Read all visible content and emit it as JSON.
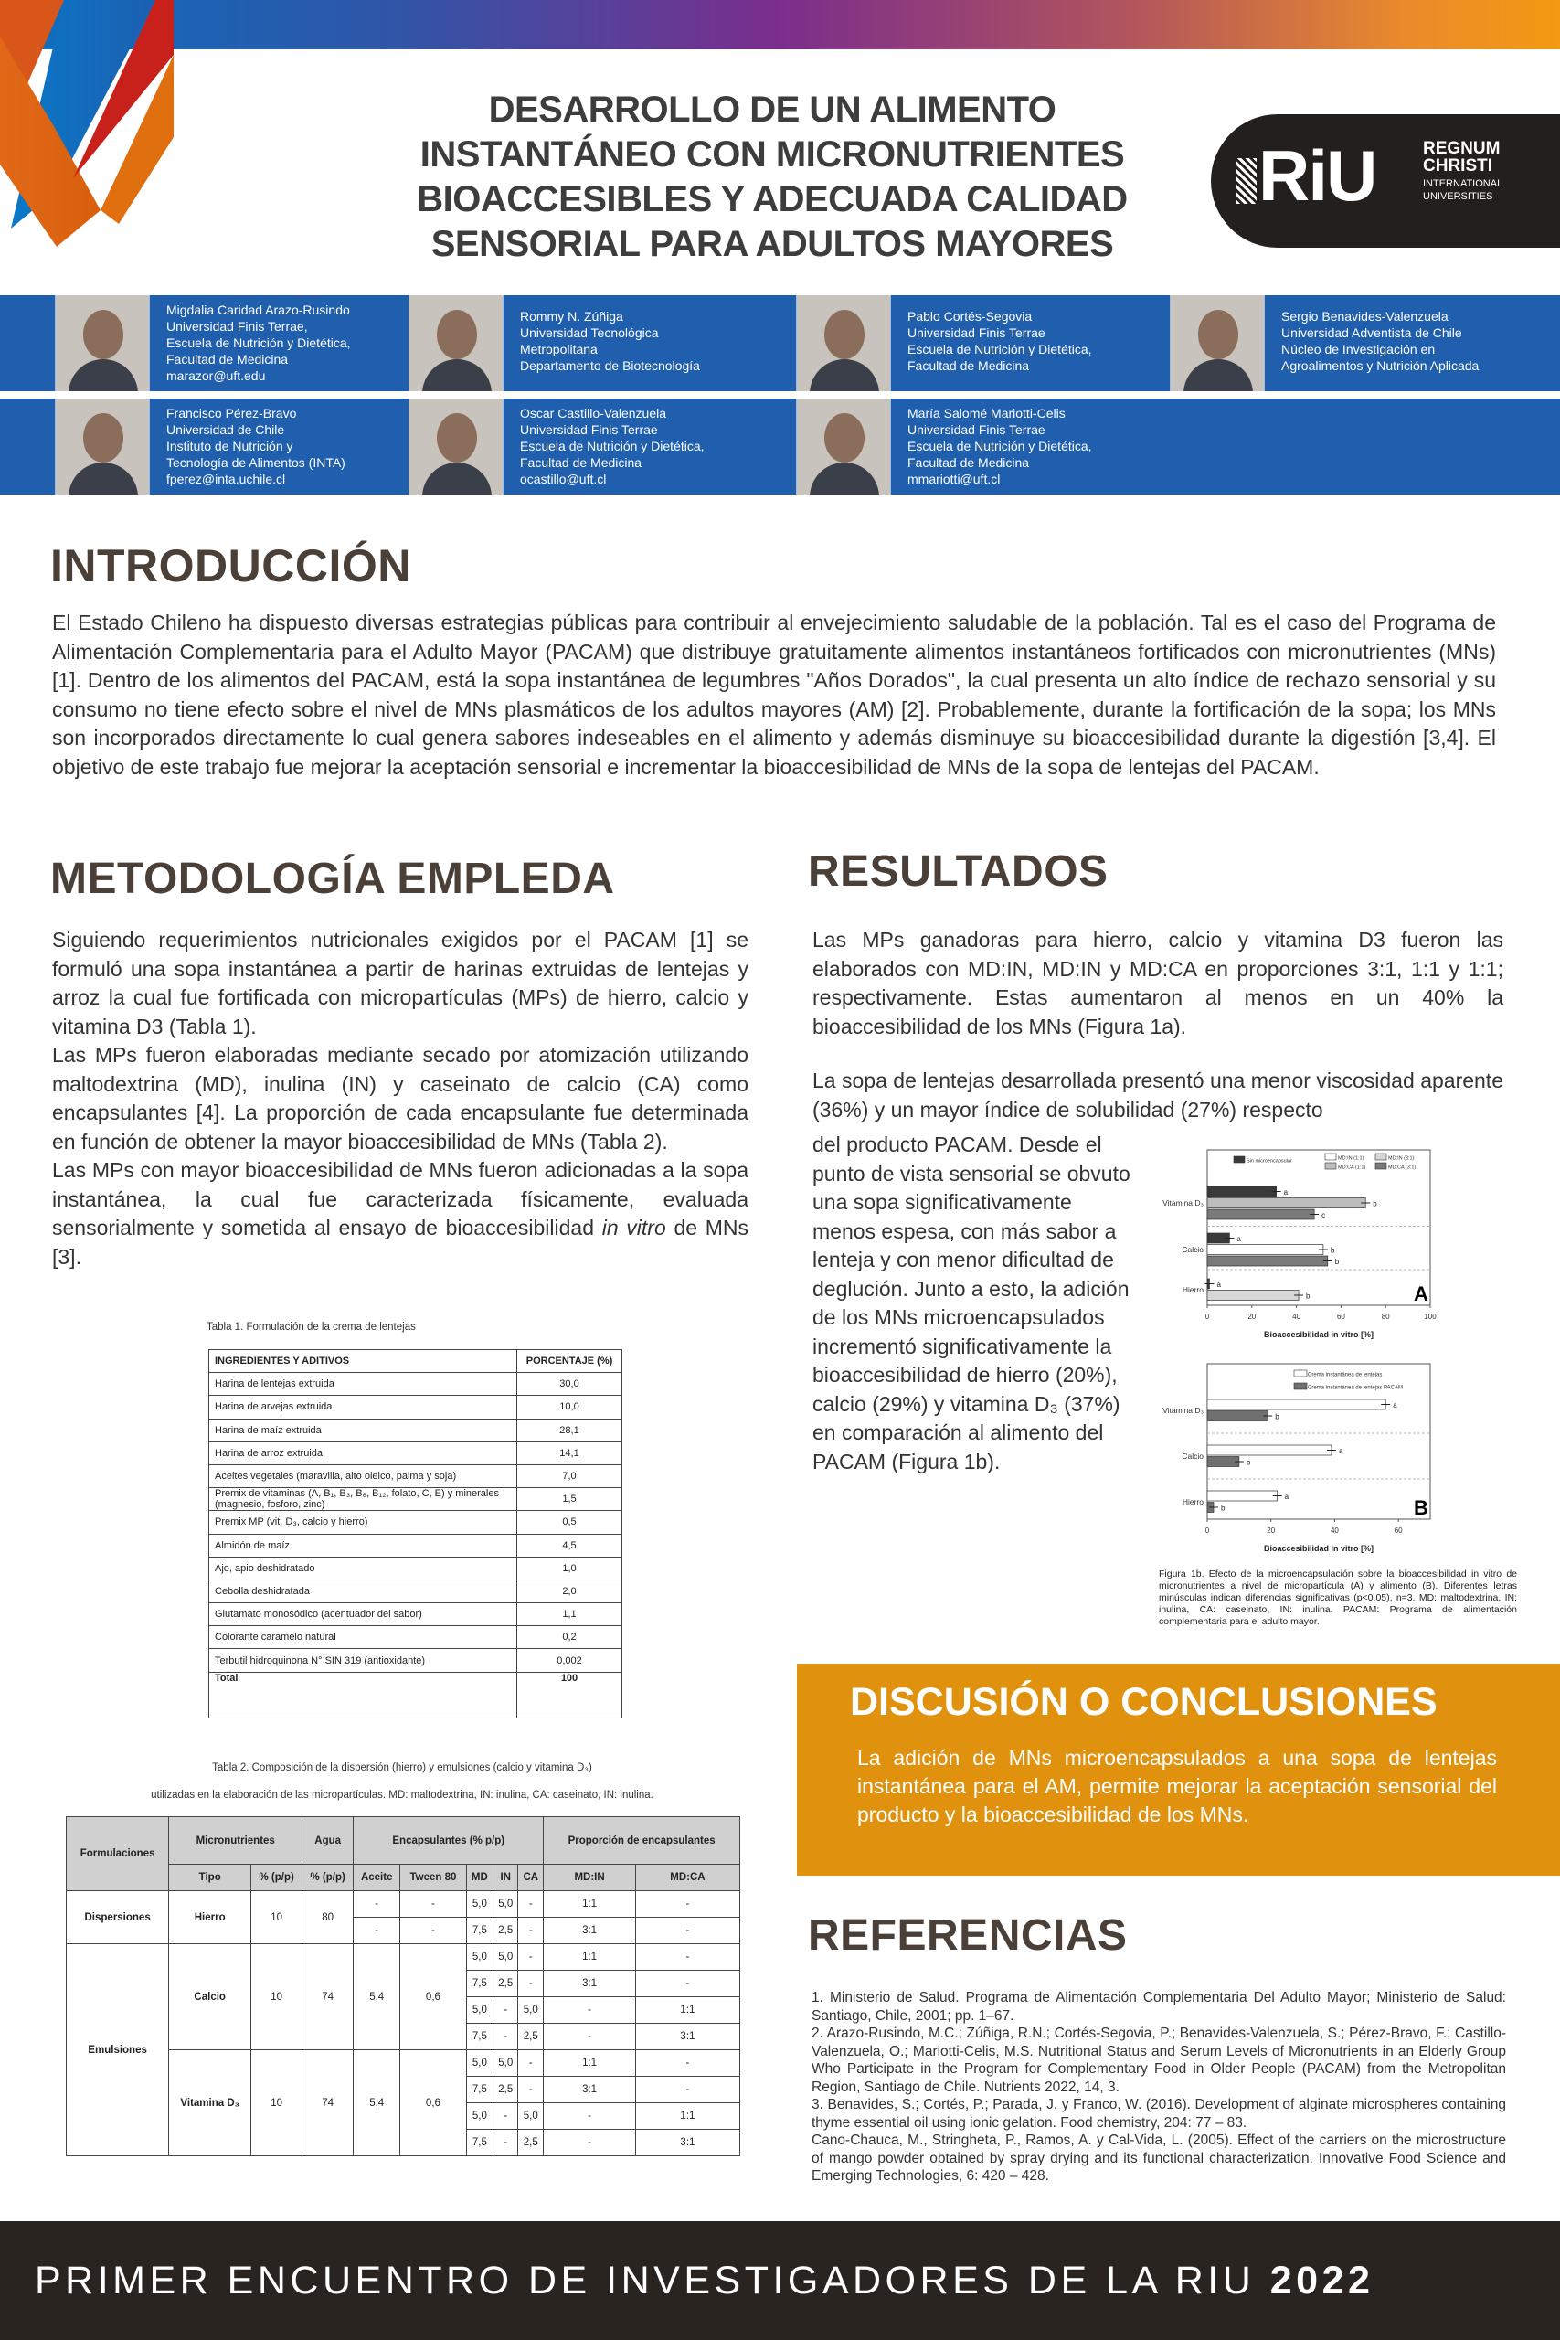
{
  "header": {
    "title_lines": [
      "DESARROLLO DE UN ALIMENTO",
      "INSTANTÁNEO CON MICRONUTRIENTES",
      "BIOACCESIBLES Y ADECUADA CALIDAD",
      "SENSORIAL PARA ADULTOS MAYORES"
    ],
    "logo": {
      "mark": "RiU",
      "lines": [
        "REGNUM",
        "CHRISTI",
        "INTERNATIONAL",
        "UNIVERSITIES"
      ]
    },
    "gradient_colors": [
      "#0c6fbf",
      "#7b2e8c",
      "#f29a12"
    ]
  },
  "authors": [
    [
      {
        "lines": [
          "Migdalia Caridad Arazo-Rusindo",
          "Universidad Finis Terrae,",
          "Escuela de Nutrición y Dietética,",
          "Facultad de Medicina",
          "marazor@uft.edu"
        ]
      },
      {
        "lines": [
          "Rommy N. Zúñiga",
          "Universidad Tecnológica",
          "Metropolitana",
          "Departamento de Biotecnología"
        ]
      },
      {
        "lines": [
          "Pablo Cortés-Segovia",
          "Universidad Finis Terrae",
          "Escuela de Nutrición y Dietética,",
          "Facultad de Medicina"
        ]
      },
      {
        "lines": [
          "Sergio Benavides-Valenzuela",
          "Universidad Adventista de Chile",
          "Núcleo de Investigación en",
          "Agroalimentos y Nutrición Aplicada"
        ]
      }
    ],
    [
      {
        "lines": [
          "Francisco Pérez-Bravo",
          "Universidad de Chile",
          "Instituto de Nutrición y",
          "Tecnología de Alimentos (INTA)",
          "fperez@inta.uchile.cl"
        ]
      },
      {
        "lines": [
          "Oscar Castillo-Valenzuela",
          "Universidad Finis Terrae",
          "Escuela de Nutrición y Dietética,",
          "Facultad de Medicina",
          "ocastillo@uft.cl"
        ]
      },
      {
        "lines": [
          "María Salomé Mariotti-Celis",
          "Universidad Finis Terrae",
          "Escuela de Nutrición y Dietética,",
          "Facultad de Medicina",
          "mmariotti@uft.cl"
        ]
      }
    ]
  ],
  "intro": {
    "heading": "INTRODUCCIÓN",
    "text": "El Estado Chileno ha dispuesto diversas estrategias públicas para contribuir al envejecimiento saludable de la población. Tal es el caso del Programa de Alimentación Complementaria para el Adulto Mayor (PACAM) que distribuye gratuitamente alimentos instantáneos fortificados con micronutrientes (MNs) [1]. Dentro de los alimentos del PACAM, está la sopa instantánea de legumbres \"Años Dorados\", la cual presenta un alto índice de rechazo sensorial y su consumo no tiene efecto sobre el nivel de MNs plasmáticos de los adultos mayores (AM) [2]. Probablemente, durante la fortificación de la sopa; los MNs son incorporados directamente lo cual genera sabores indeseables en el alimento y además disminuye su bioaccesibilidad durante la digestión [3,4]. El objetivo de este trabajo fue mejorar la aceptación sensorial e incrementar la bioaccesibilidad de MNs de la sopa de lentejas del PACAM."
  },
  "methods": {
    "heading": "METODOLOGÍA EMPLEDA",
    "p1": "Siguiendo requerimientos nutricionales exigidos por el PACAM [1] se formuló una sopa instantánea a partir de harinas extruidas de lentejas y arroz la cual fue fortificada con micropartículas (MPs) de hierro, calcio y vitamina D3 (Tabla 1).",
    "p2": "Las MPs fueron elaboradas mediante secado por atomización utilizando maltodextrina (MD), inulina (IN) y caseinato de calcio (CA) como encapsulantes [4]. La proporción de cada encapsulante fue determinada en función de obtener la mayor bioaccesibilidad de MNs (Tabla 2).",
    "p3": "Las MPs con mayor bioaccesibilidad de MNs fueron adicionadas a la sopa instantánea, la cual fue caracterizada físicamente, evaluada sensorialmente y sometida al ensayo de bioaccesibilidad",
    "p3_italic": "in vitro",
    "p3_end": " de MNs [3]."
  },
  "table1": {
    "caption": "Tabla 1. Formulación de la crema de lentejas",
    "headers": [
      "INGREDIENTES Y ADITIVOS",
      "PORCENTAJE (%)"
    ],
    "rows": [
      [
        "Harina de lentejas extruida",
        "30,0"
      ],
      [
        "Harina de arvejas extruida",
        "10,0"
      ],
      [
        "Harina de maíz extruida",
        "28,1"
      ],
      [
        "Harina de arroz extruida",
        "14,1"
      ],
      [
        "Aceites vegetales (maravilla, alto oleico, palma y soja)",
        "7,0"
      ],
      [
        "Premix de vitaminas (A, B₁, B₃, B₆, B₁₂, folato, C, E) y minerales (magnesio, fosforo, zinc)",
        "1,5"
      ],
      [
        "Premix MP (vit. D₃, calcio y hierro)",
        "0,5"
      ],
      [
        "Almidón de maíz",
        "4,5"
      ],
      [
        "Ajo, apio deshidratado",
        "1,0"
      ],
      [
        "Cebolla deshidratada",
        "2,0"
      ],
      [
        "Glutamato monosódico (acentuador del sabor)",
        "1,1"
      ],
      [
        "Colorante caramelo natural",
        "0,2"
      ],
      [
        "Terbutil hidroquinona N° SIN 319 (antioxidante)",
        "0,002"
      ]
    ],
    "total": [
      "Total",
      "100"
    ]
  },
  "table2": {
    "caption_1": "Tabla 2. Composición de la dispersión (hierro) y emulsiones (calcio y vitamina D₃)",
    "caption_2": "utilizadas en la elaboración de las micropartículas. MD: maltodextrina, IN: inulina, CA: caseinato, IN: inulina.",
    "header_top": [
      "Formulaciones",
      "Micronutrientes",
      "Agua",
      "Encapsulantes (% p/p)",
      "Proporción de encapsulantes"
    ],
    "header_sub": [
      "Tipo",
      "% (p/p)",
      "% (p/p)",
      "Aceite",
      "Tween 80",
      "MD",
      "IN",
      "CA",
      "MD:IN",
      "MD:CA"
    ],
    "groups": [
      {
        "formulation": "Dispersiones",
        "types": [
          {
            "tipo": "Hierro",
            "pct": "10",
            "agua": "80",
            "rows": [
              [
                "-",
                "-",
                "5,0",
                "5,0",
                "-",
                "1:1",
                "-"
              ],
              [
                "-",
                "-",
                "7,5",
                "2,5",
                "-",
                "3:1",
                "-"
              ]
            ]
          }
        ]
      },
      {
        "formulation": "Emulsiones",
        "types": [
          {
            "tipo": "Calcio",
            "pct": "10",
            "agua": "74",
            "aceite": "5,4",
            "tween": "0,6",
            "rows": [
              [
                "5,0",
                "5,0",
                "-",
                "1:1",
                "-"
              ],
              [
                "7,5",
                "2,5",
                "-",
                "3:1",
                "-"
              ],
              [
                "5,0",
                "-",
                "5,0",
                "-",
                "1:1"
              ],
              [
                "7,5",
                "-",
                "2,5",
                "-",
                "3:1"
              ]
            ]
          },
          {
            "tipo": "Vitamina D₃",
            "pct": "10",
            "agua": "74",
            "aceite": "5,4",
            "tween": "0,6",
            "rows": [
              [
                "5,0",
                "5,0",
                "-",
                "1:1",
                "-"
              ],
              [
                "7,5",
                "2,5",
                "-",
                "3:1",
                "-"
              ],
              [
                "5,0",
                "-",
                "5,0",
                "-",
                "1:1"
              ],
              [
                "7,5",
                "-",
                "2,5",
                "-",
                "3:1"
              ]
            ]
          }
        ]
      }
    ]
  },
  "results": {
    "heading": "RESULTADOS",
    "p1": "Las MPs ganadoras para hierro, calcio y vitamina D3 fueron las elaborados con MD:IN, MD:IN y MD:CA en proporciones 3:1, 1:1 y 1:1; respectivamente. Estas aumentaron al menos en un 40% la bioaccesibilidad de los MNs (Figura 1a).",
    "p2": "La sopa de lentejas desarrollada presentó una menor viscosidad aparente (36%) y un mayor índice de solubilidad (27%) respecto",
    "p3": "del producto PACAM. Desde el punto de vista sensorial se obvuto una sopa significativamente menos espesa, con más sabor a lenteja y con menor dificultad de deglución. Junto a esto, la adición de los MNs microencapsulados incrementó significativamente la bioaccesibilidad de hierro (20%), calcio (29%) y vitamina D₃ (37%) en comparación al alimento del PACAM (Figura 1b).",
    "figure_caption": "Figura 1b. Efecto de la microencapsulación sobre la bioaccesibilidad in vitro de micronutrientes a nivel de micropartícula (A) y alimento (B). Diferentes letras minúsculas indican diferencias significativas (p<0,05), n=3. MD: maltodextrina, IN: inulina, CA: caseinato, IN: inulina. PACAM: Programa de alimentación complementaria para el adulto mayor."
  },
  "chart_data": [
    {
      "type": "bar",
      "orientation": "horizontal",
      "panel_label": "A",
      "categories": [
        "Vitamina D₃",
        "Calcio",
        "Hierro"
      ],
      "xlabel": "Bioaccesibilidad in vitro [%]",
      "xlim": [
        0,
        100
      ],
      "xticks": [
        "0",
        "20",
        "40",
        "60",
        "80",
        "100"
      ],
      "legend_position": "top-right",
      "legend": [
        {
          "name": "Sin microencapsular",
          "color": "#3a3a3a"
        },
        {
          "name": "MD:IN (1:1)",
          "color": "#ffffff"
        },
        {
          "name": "MD:IN (3:1)",
          "color": "#d6d6d6"
        },
        {
          "name": "MD:CA (1:1)",
          "color": "#bdbdbd"
        },
        {
          "name": "MD:CA (3:1)",
          "color": "#7a7a7a"
        }
      ],
      "bars": [
        {
          "category": "Vitamina D₃",
          "series": "Sin microencapsular",
          "value": 31,
          "letter": "a"
        },
        {
          "category": "Vitamina D₃",
          "series": "MD:CA (1:1)",
          "value": 71,
          "letter": "b"
        },
        {
          "category": "Vitamina D₃",
          "series": "MD:CA (3:1)",
          "value": 48,
          "letter": "c"
        },
        {
          "category": "Calcio",
          "series": "Sin microencapsular",
          "value": 10,
          "letter": "a"
        },
        {
          "category": "Calcio",
          "series": "MD:IN (1:1)",
          "value": 52,
          "letter": "b"
        },
        {
          "category": "Calcio",
          "series": "MD:CA (3:1)",
          "value": 54,
          "letter": "b"
        },
        {
          "category": "Hierro",
          "series": "Sin microencapsular",
          "value": 1,
          "letter": "a"
        },
        {
          "category": "Hierro",
          "series": "MD:IN (3:1)",
          "value": 41,
          "letter": "b"
        }
      ]
    },
    {
      "type": "bar",
      "orientation": "horizontal",
      "panel_label": "B",
      "categories": [
        "Vitamina D₃",
        "Calcio",
        "Hierro"
      ],
      "xlabel": "Bioaccesibilidad in vitro [%]",
      "xlim": [
        0,
        70
      ],
      "xticks": [
        "0",
        "20",
        "40",
        "60"
      ],
      "legend_position": "top-right",
      "series": [
        {
          "name": "Crema instantánea de lentejas",
          "color": "#ffffff",
          "values": [
            56,
            39,
            22
          ],
          "letters": [
            "a",
            "a",
            "a"
          ]
        },
        {
          "name": "Crema instantánea de lentejas PACAM",
          "color": "#707070",
          "values": [
            19,
            10,
            2
          ],
          "letters": [
            "b",
            "b",
            "b"
          ]
        }
      ]
    }
  ],
  "discussion": {
    "heading": "DISCUSIÓN O CONCLUSIONES",
    "text": "La adición de MNs microencapsulados a una sopa de lentejas instantánea para el AM, permite mejorar la aceptación sensorial del producto y la bioaccesibilidad de los MNs.",
    "color": "#e0920f"
  },
  "references": {
    "heading": "REFERENCIAS",
    "items": [
      "1.   Ministerio de Salud. Programa de Alimentación Complementaria Del Adulto Mayor; Ministerio de Salud: Santiago, Chile, 2001; pp. 1–67.",
      "2.   Arazo-Rusindo, M.C.; Zúñiga, R.N.; Cortés-Segovia, P.; Benavides-Valenzuela, S.; Pérez-Bravo, F.; Castillo-Valenzuela, O.; Mariotti-Celis, M.S. Nutritional Status and Serum Levels of Micronutrients in an Elderly Group Who Participate in the Program for Complementary Food in Older People (PACAM) from the Metropolitan Region, Santiago de Chile. Nutrients 2022, 14, 3.",
      "3.   Benavides, S.; Cortés, P.; Parada, J. y Franco, W. (2016). Development of alginate microspheres containing thyme essential oil using ionic gelation. Food chemistry, 204: 77 – 83.",
      "Cano-Chauca, M., Stringheta, P., Ramos, A. y Cal-Vida, L. (2005). Effect of the carriers on the microstructure of mango powder obtained by spray drying and its functional characterization. Innovative Food Science and Emerging Technologies, 6: 420 – 428."
    ]
  },
  "footer": {
    "text": "PRIMER ENCUENTRO DE INVESTIGADORES DE LA RIU ",
    "year": "2022"
  }
}
